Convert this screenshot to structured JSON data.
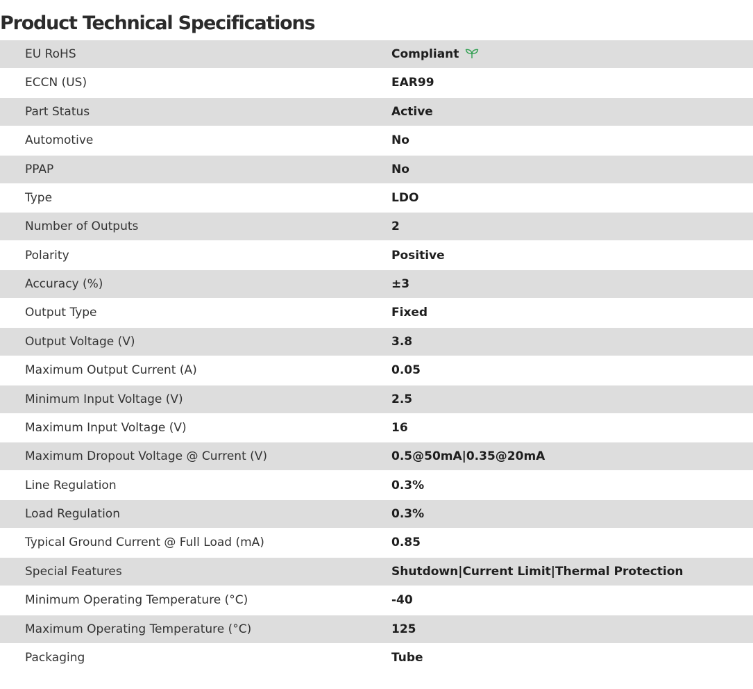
{
  "page": {
    "title": "Product Technical Specifications"
  },
  "colors": {
    "stripe": "#dddddd",
    "leaf_icon": "#2e9e4f"
  },
  "specs": [
    {
      "label": "EU RoHS",
      "value": "Compliant",
      "icon": "leaf-icon"
    },
    {
      "label": "ECCN (US)",
      "value": "EAR99"
    },
    {
      "label": "Part Status",
      "value": "Active"
    },
    {
      "label": "Automotive",
      "value": "No"
    },
    {
      "label": "PPAP",
      "value": "No"
    },
    {
      "label": "Type",
      "value": "LDO"
    },
    {
      "label": "Number of Outputs",
      "value": "2"
    },
    {
      "label": "Polarity",
      "value": "Positive"
    },
    {
      "label": "Accuracy (%)",
      "value": "±3"
    },
    {
      "label": "Output Type",
      "value": "Fixed"
    },
    {
      "label": "Output Voltage (V)",
      "value": "3.8"
    },
    {
      "label": "Maximum Output Current (A)",
      "value": "0.05"
    },
    {
      "label": "Minimum Input Voltage (V)",
      "value": "2.5"
    },
    {
      "label": "Maximum Input Voltage (V)",
      "value": "16"
    },
    {
      "label": "Maximum Dropout Voltage @ Current (V)",
      "value": "0.5@50mA|0.35@20mA"
    },
    {
      "label": "Line Regulation",
      "value": "0.3%"
    },
    {
      "label": "Load Regulation",
      "value": "0.3%"
    },
    {
      "label": "Typical Ground Current @ Full Load (mA)",
      "value": "0.85"
    },
    {
      "label": "Special Features",
      "value": "Shutdown|Current Limit|Thermal Protection"
    },
    {
      "label": "Minimum Operating Temperature (°C)",
      "value": "-40"
    },
    {
      "label": "Maximum Operating Temperature (°C)",
      "value": "125"
    },
    {
      "label": "Packaging",
      "value": "Tube"
    }
  ]
}
